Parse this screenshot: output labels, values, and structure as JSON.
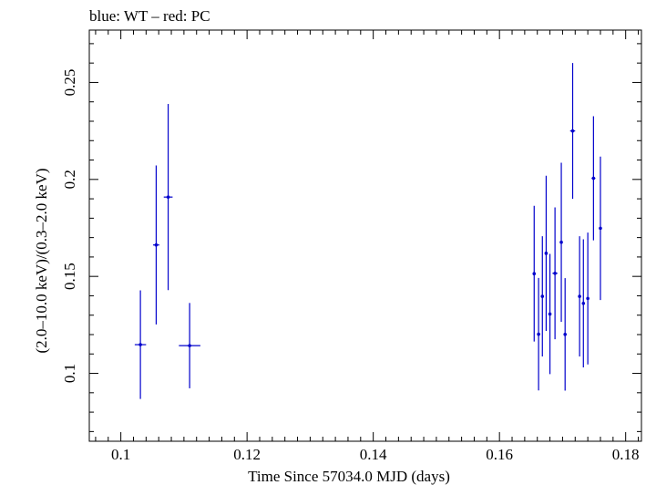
{
  "chart_data": {
    "type": "scatter",
    "title": "blue: WT – red: PC",
    "xlabel": "Time Since 57034.0 MJD (days)",
    "ylabel": "(2.0–10.0 keV)/(0.3–2.0 keV)",
    "xlim": [
      0.095,
      0.1825
    ],
    "ylim": [
      0.065,
      0.277
    ],
    "xticks": [
      0.1,
      0.12,
      0.14,
      0.16,
      0.18
    ],
    "xtick_labels": [
      "0.1",
      "0.12",
      "0.14",
      "0.16",
      "0.18"
    ],
    "yticks": [
      0.1,
      0.15,
      0.2,
      0.25
    ],
    "ytick_labels": [
      "0.1",
      "0.15",
      "0.2",
      "0.25"
    ],
    "grid": false,
    "series": [
      {
        "color": "#0000cc",
        "points": [
          {
            "x": 0.1031,
            "y": 0.1148,
            "xerr": 0.0009,
            "yerr": 0.028
          },
          {
            "x": 0.1056,
            "y": 0.1662,
            "xerr": 0.0005,
            "yerr": 0.041
          },
          {
            "x": 0.1075,
            "y": 0.1909,
            "xerr": 0.0007,
            "yerr": 0.048
          },
          {
            "x": 0.1109,
            "y": 0.1143,
            "xerr": 0.0017,
            "yerr": 0.022
          },
          {
            "x": 0.1655,
            "y": 0.1514,
            "xerr": 0.0002,
            "yerr": 0.035
          },
          {
            "x": 0.1662,
            "y": 0.1202,
            "xerr": 0.0002,
            "yerr": 0.029
          },
          {
            "x": 0.1668,
            "y": 0.1397,
            "xerr": 0.0002,
            "yerr": 0.031
          },
          {
            "x": 0.1674,
            "y": 0.1619,
            "xerr": 0.0002,
            "yerr": 0.04
          },
          {
            "x": 0.168,
            "y": 0.1306,
            "xerr": 0.0002,
            "yerr": 0.031
          },
          {
            "x": 0.1688,
            "y": 0.1516,
            "xerr": 0.0004,
            "yerr": 0.034
          },
          {
            "x": 0.1698,
            "y": 0.1676,
            "xerr": 0.0002,
            "yerr": 0.041
          },
          {
            "x": 0.1704,
            "y": 0.1201,
            "xerr": 0.0002,
            "yerr": 0.029
          },
          {
            "x": 0.1716,
            "y": 0.225,
            "xerr": 0.0004,
            "yerr": 0.035
          },
          {
            "x": 0.1727,
            "y": 0.1397,
            "xerr": 0.0002,
            "yerr": 0.031
          },
          {
            "x": 0.1733,
            "y": 0.1361,
            "xerr": 0.0002,
            "yerr": 0.033
          },
          {
            "x": 0.174,
            "y": 0.1386,
            "xerr": 0.0002,
            "yerr": 0.034
          },
          {
            "x": 0.1749,
            "y": 0.2006,
            "xerr": 0.0003,
            "yerr": 0.032
          },
          {
            "x": 0.176,
            "y": 0.1748,
            "xerr": 0.0002,
            "yerr": 0.037
          }
        ]
      }
    ]
  }
}
